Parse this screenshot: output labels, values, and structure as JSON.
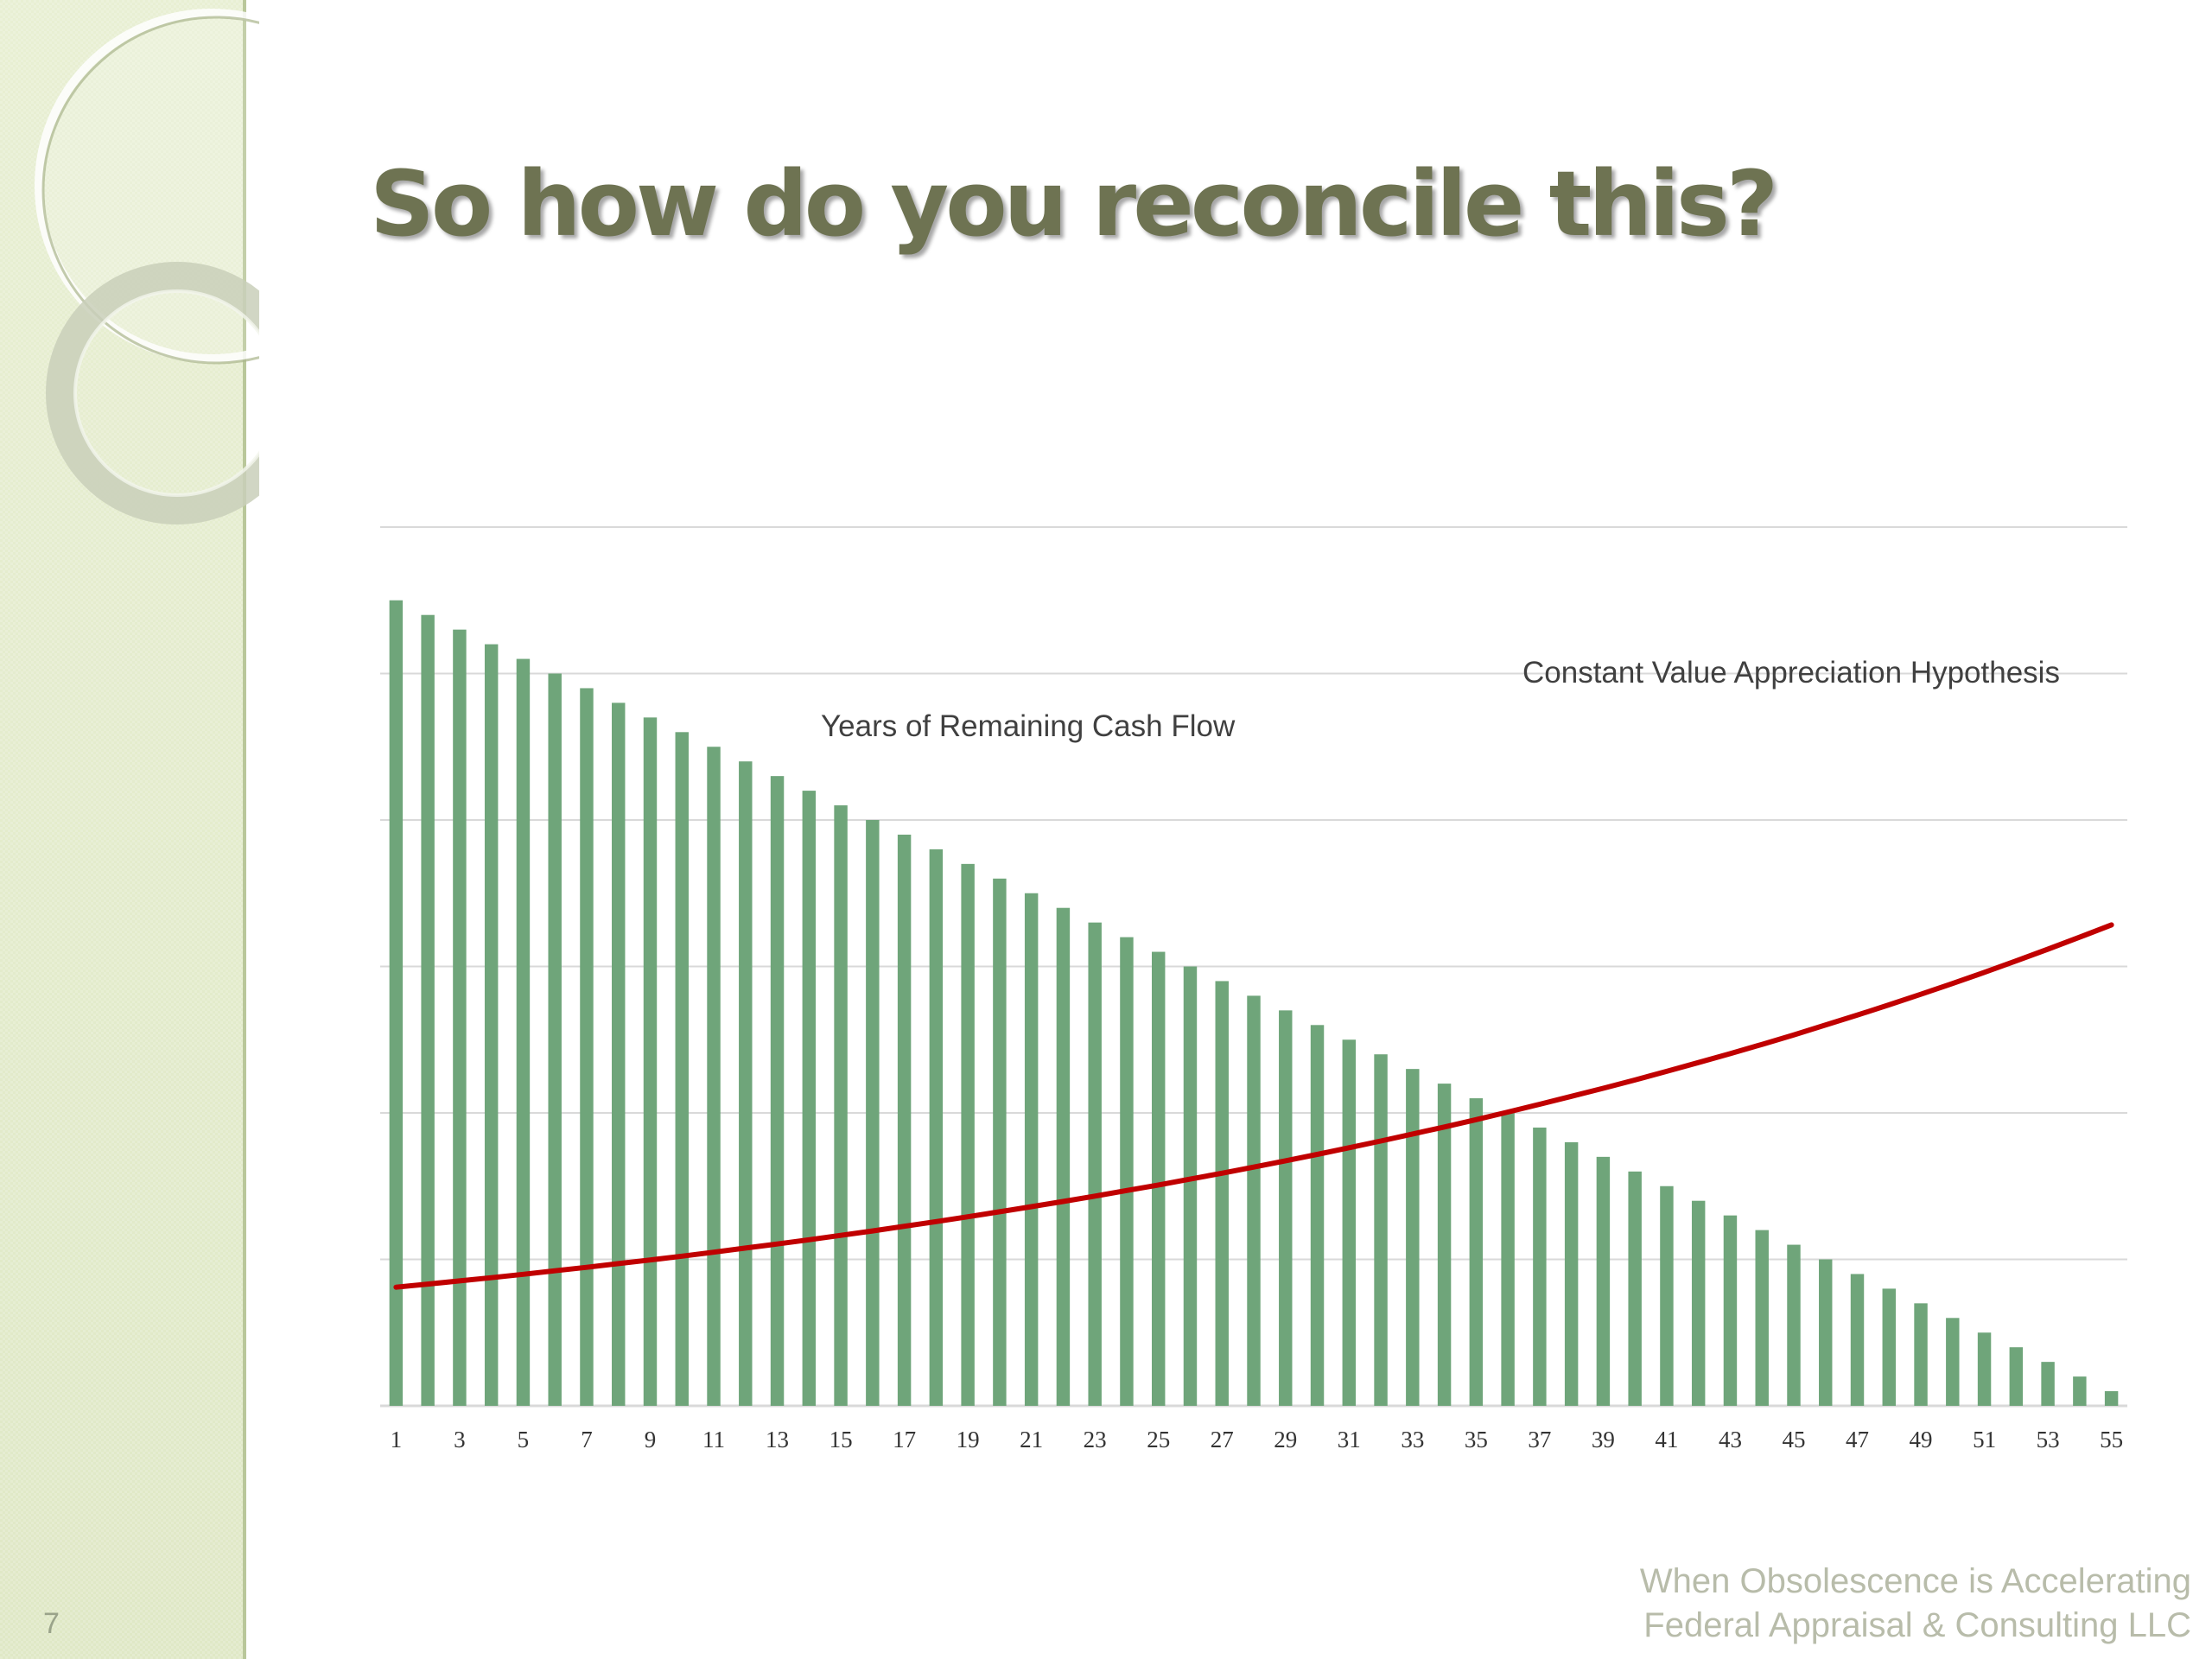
{
  "slide": {
    "title": "So how do you reconcile this?",
    "number": "7",
    "footer_line1": "When Obsolescence is Accelerating",
    "footer_line2": "Federal Appraisal & Consulting LLC"
  },
  "colors": {
    "bars": "#6fa57a",
    "curve": "#c00000",
    "gridline": "#d9d9d9",
    "title": "#6e7352",
    "sidebar": "#e3ebcb"
  },
  "chart_data": {
    "type": "bar",
    "x": [
      1,
      2,
      3,
      4,
      5,
      6,
      7,
      8,
      9,
      10,
      11,
      12,
      13,
      14,
      15,
      16,
      17,
      18,
      19,
      20,
      21,
      22,
      23,
      24,
      25,
      26,
      27,
      28,
      29,
      30,
      31,
      32,
      33,
      34,
      35,
      36,
      37,
      38,
      39,
      40,
      41,
      42,
      43,
      44,
      45,
      46,
      47,
      48,
      49,
      50,
      51,
      52,
      53,
      54,
      55
    ],
    "x_tick_labels": [
      "1",
      "3",
      "5",
      "7",
      "9",
      "11",
      "13",
      "15",
      "17",
      "19",
      "21",
      "23",
      "25",
      "27",
      "29",
      "31",
      "33",
      "35",
      "37",
      "39",
      "41",
      "43",
      "45",
      "47",
      "49",
      "51",
      "53",
      "55"
    ],
    "ylim": [
      0,
      60
    ],
    "grid": true,
    "y_tick_labels_shown": false,
    "series": [
      {
        "name": "Years of Remaining Cash Flow",
        "type": "bar",
        "values": [
          55,
          54,
          53,
          52,
          51,
          50,
          49,
          48,
          47,
          46,
          45,
          44,
          43,
          42,
          41,
          40,
          39,
          38,
          37,
          36,
          35,
          34,
          33,
          32,
          31,
          30,
          29,
          28,
          27,
          26,
          25,
          24,
          23,
          22,
          21,
          20,
          19,
          18,
          17,
          16,
          15,
          14,
          13,
          12,
          11,
          10,
          9,
          8,
          7,
          6,
          5,
          4,
          3,
          2,
          1
        ]
      },
      {
        "name": "Constant Value Appreciation Hypothesis",
        "type": "line",
        "values": [
          8.1,
          8.31,
          8.53,
          8.75,
          8.98,
          9.22,
          9.46,
          9.71,
          9.96,
          10.22,
          10.49,
          10.77,
          11.05,
          11.34,
          11.64,
          11.94,
          12.26,
          12.58,
          12.91,
          13.25,
          13.6,
          13.95,
          14.32,
          14.7,
          15.08,
          15.48,
          15.88,
          16.3,
          16.73,
          17.17,
          17.62,
          18.08,
          18.56,
          19.04,
          19.54,
          20.06,
          20.59,
          21.13,
          21.68,
          22.25,
          22.84,
          23.44,
          24.05,
          24.68,
          25.33,
          26,
          26.68,
          27.38,
          28.1,
          28.84,
          29.6,
          30.38,
          31.18,
          32,
          32.84
        ]
      }
    ]
  }
}
